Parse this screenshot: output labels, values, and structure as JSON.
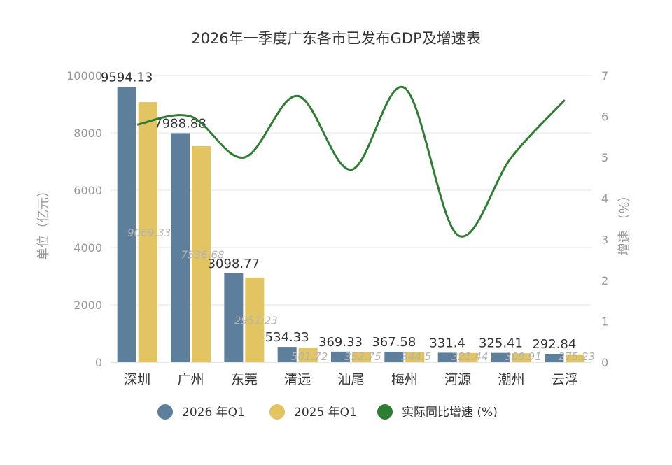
{
  "chart_data": {
    "type": "bar",
    "title": "2026年一季度广东各市已发布GDP及增速表",
    "categories": [
      "深圳",
      "广州",
      "东莞",
      "清远",
      "汕尾",
      "梅州",
      "河源",
      "潮州",
      "云浮"
    ],
    "ylabel": "单位（亿元）",
    "y2label": "增速 （%）",
    "ylim": [
      0,
      10000
    ],
    "y2lim": [
      0,
      7
    ],
    "yticks": [
      "0",
      "2000",
      "4000",
      "6000",
      "8000",
      "10000"
    ],
    "y2ticks": [
      "0",
      "1",
      "2",
      "3",
      "4",
      "5",
      "6",
      "7"
    ],
    "grid": true,
    "legend_position": "bottom",
    "series": [
      {
        "name": "2026 年Q1",
        "kind": "bar",
        "color": "#5e7f9b",
        "values": [
          9594.13,
          7988.88,
          3098.77,
          534.33,
          369.33,
          367.58,
          331.4,
          325.41,
          292.84
        ],
        "labels": [
          "9594.13",
          "7988.88",
          "3098.77",
          "534.33",
          "369.33",
          "367.58",
          "331.4",
          "325.41",
          "292.84"
        ]
      },
      {
        "name": "2025 年Q1",
        "kind": "bar",
        "color": "#e2c462",
        "values": [
          9069.33,
          7536.68,
          2951.23,
          501.72,
          352.75,
          344.5,
          321.44,
          309.91,
          275.23
        ],
        "labels": [
          "9069.33",
          "7536.68",
          "2951.23",
          "501.72",
          "352.75",
          "344.5",
          "321.44",
          "309.91",
          "275.23"
        ]
      },
      {
        "name": "实际同比增速 (%)",
        "kind": "line",
        "axis": "right",
        "color": "#2e7d32",
        "values": [
          5.8,
          6.0,
          5.0,
          6.5,
          4.7,
          6.7,
          3.1,
          5.0,
          6.4
        ]
      }
    ]
  }
}
